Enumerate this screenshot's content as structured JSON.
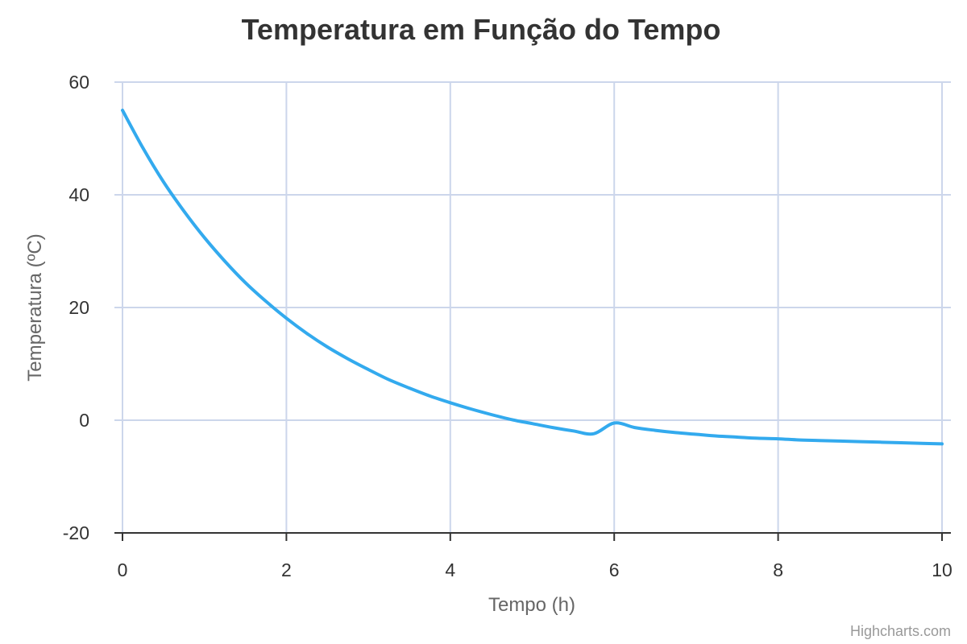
{
  "chart_data": {
    "type": "line",
    "title": "Temperatura em Função do Tempo",
    "xlabel": "Tempo (h)",
    "ylabel": "Temperatura (ºC)",
    "xlim": [
      0,
      10
    ],
    "ylim": [
      -20,
      60
    ],
    "x_ticks": [
      0,
      2,
      4,
      6,
      8,
      10
    ],
    "x_tick_labels": [
      "0",
      "2",
      "4",
      "6",
      "8",
      "10"
    ],
    "y_ticks": [
      -20,
      0,
      20,
      40,
      60
    ],
    "y_tick_labels": [
      "-20",
      "0",
      "20",
      "40",
      "60"
    ],
    "grid": true,
    "legend": "none",
    "series": [
      {
        "color": "#33aaee",
        "x": [
          0,
          0.25,
          0.5,
          0.75,
          1,
          1.25,
          1.5,
          1.75,
          2,
          2.25,
          2.5,
          2.75,
          3,
          3.25,
          3.5,
          3.75,
          4,
          4.25,
          4.5,
          4.75,
          5,
          5.25,
          5.5,
          5.75,
          6,
          6.25,
          6.5,
          6.75,
          7,
          7.25,
          7.5,
          7.75,
          8,
          8.25,
          8.5,
          8.75,
          9,
          9.25,
          9.5,
          9.75,
          10
        ],
        "y": [
          55.0,
          48.3,
          42.3,
          37.1,
          32.4,
          28.2,
          24.4,
          21.1,
          18.1,
          15.4,
          13.0,
          10.9,
          9.0,
          7.2,
          5.7,
          4.3,
          3.1,
          2.0,
          1.0,
          0.1,
          -0.6,
          -1.3,
          -1.9,
          -2.4,
          -0.5,
          -1.3,
          -1.8,
          -2.2,
          -2.5,
          -2.8,
          -3.0,
          -3.2,
          -3.3,
          -3.5,
          -3.6,
          -3.7,
          -3.8,
          -3.9,
          -4.0,
          -4.1,
          -4.2
        ]
      }
    ]
  },
  "credits": "Highcharts.com"
}
